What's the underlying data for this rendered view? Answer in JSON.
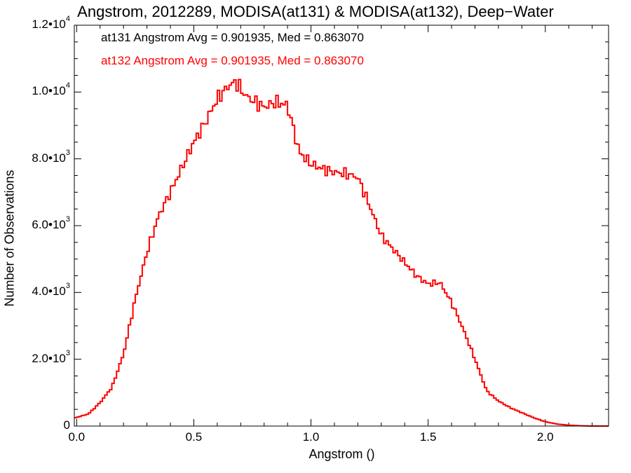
{
  "chart_data": {
    "type": "line",
    "step": true,
    "title": "Angstrom, 2012289, MODISA(at131) & MODISA(at132), Deep−Water",
    "xlabel": "Angstrom ()",
    "ylabel": "Number of Observations",
    "xlim": [
      -0.01,
      2.27
    ],
    "ylim": [
      0,
      12000
    ],
    "grid": false,
    "x_ticks": [
      {
        "value": 0.0,
        "label": "0.0"
      },
      {
        "value": 0.5,
        "label": "0.5"
      },
      {
        "value": 1.0,
        "label": "1.0"
      },
      {
        "value": 1.5,
        "label": "1.5"
      },
      {
        "value": 2.0,
        "label": "2.0"
      }
    ],
    "y_ticks": [
      {
        "value": 0,
        "mantissa": "0",
        "exp": ""
      },
      {
        "value": 2000,
        "mantissa": "2.0•10",
        "exp": "3"
      },
      {
        "value": 4000,
        "mantissa": "4.0•10",
        "exp": "3"
      },
      {
        "value": 6000,
        "mantissa": "6.0•10",
        "exp": "3"
      },
      {
        "value": 8000,
        "mantissa": "8.0•10",
        "exp": "3"
      },
      {
        "value": 10000,
        "mantissa": "1.0•10",
        "exp": "4"
      },
      {
        "value": 12000,
        "mantissa": "1.2•10",
        "exp": "4"
      }
    ],
    "legend_position": "top-left",
    "legend": [
      {
        "text": "at131 Angstrom Avg = 0.901935, Med = 0.863070",
        "color": "#000000"
      },
      {
        "text": "at132 Angstrom Avg = 0.901935, Med = 0.863070",
        "color": "#ff0000"
      }
    ],
    "series": [
      {
        "color": "#ff0000",
        "x": [
          -0.01,
          0.0,
          0.05,
          0.1,
          0.15,
          0.2,
          0.25,
          0.3,
          0.35,
          0.4,
          0.45,
          0.5,
          0.55,
          0.6,
          0.65,
          0.68,
          0.72,
          0.75,
          0.8,
          0.85,
          0.9,
          0.95,
          1.0,
          1.05,
          1.1,
          1.15,
          1.2,
          1.25,
          1.3,
          1.35,
          1.4,
          1.45,
          1.5,
          1.55,
          1.6,
          1.65,
          1.7,
          1.75,
          1.8,
          1.85,
          1.9,
          1.95,
          2.0,
          2.05,
          2.1,
          2.15,
          2.2,
          2.27
        ],
        "y": [
          230,
          260,
          360,
          700,
          1150,
          2150,
          3800,
          5200,
          6300,
          7000,
          7750,
          8500,
          9100,
          9800,
          10200,
          10300,
          9900,
          9750,
          9550,
          9700,
          9600,
          8200,
          7850,
          7700,
          7600,
          7550,
          7450,
          6600,
          5700,
          5300,
          4900,
          4500,
          4250,
          4300,
          3700,
          2900,
          2000,
          1050,
          750,
          550,
          400,
          250,
          130,
          60,
          25,
          10,
          0,
          0
        ]
      }
    ]
  }
}
